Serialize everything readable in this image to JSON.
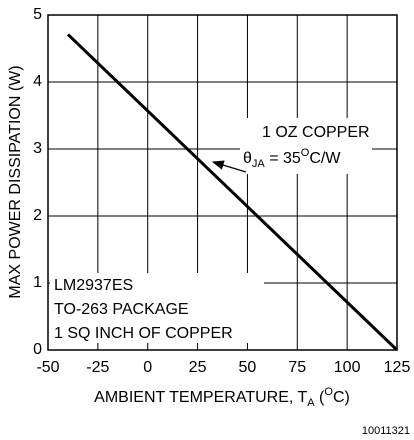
{
  "chart_data": {
    "type": "line",
    "y_label": "MAX POWER DISSIPATION (W)",
    "x_label": [
      "AMBIENT TEMPERATURE, T",
      "A",
      " (",
      "O",
      "C)"
    ],
    "x": [
      -40,
      125
    ],
    "values": [
      4.71,
      0
    ],
    "color": "#000000",
    "xlim": [
      -50,
      125
    ],
    "ylim": [
      0,
      5
    ],
    "xticks": [
      -50,
      -25,
      0,
      25,
      50,
      75,
      100,
      125
    ],
    "yticks": [
      0,
      1,
      2,
      3,
      4,
      5
    ],
    "grid": true,
    "annotation": {
      "line1": "1 OZ COPPER",
      "line2": [
        "θ",
        "JA",
        " = 35",
        "O",
        "C/W"
      ]
    },
    "box_text": [
      "LM2937ES",
      "TO-263 PACKAGE",
      "1 SQ INCH OF COPPER"
    ],
    "footnote": "10011321"
  }
}
